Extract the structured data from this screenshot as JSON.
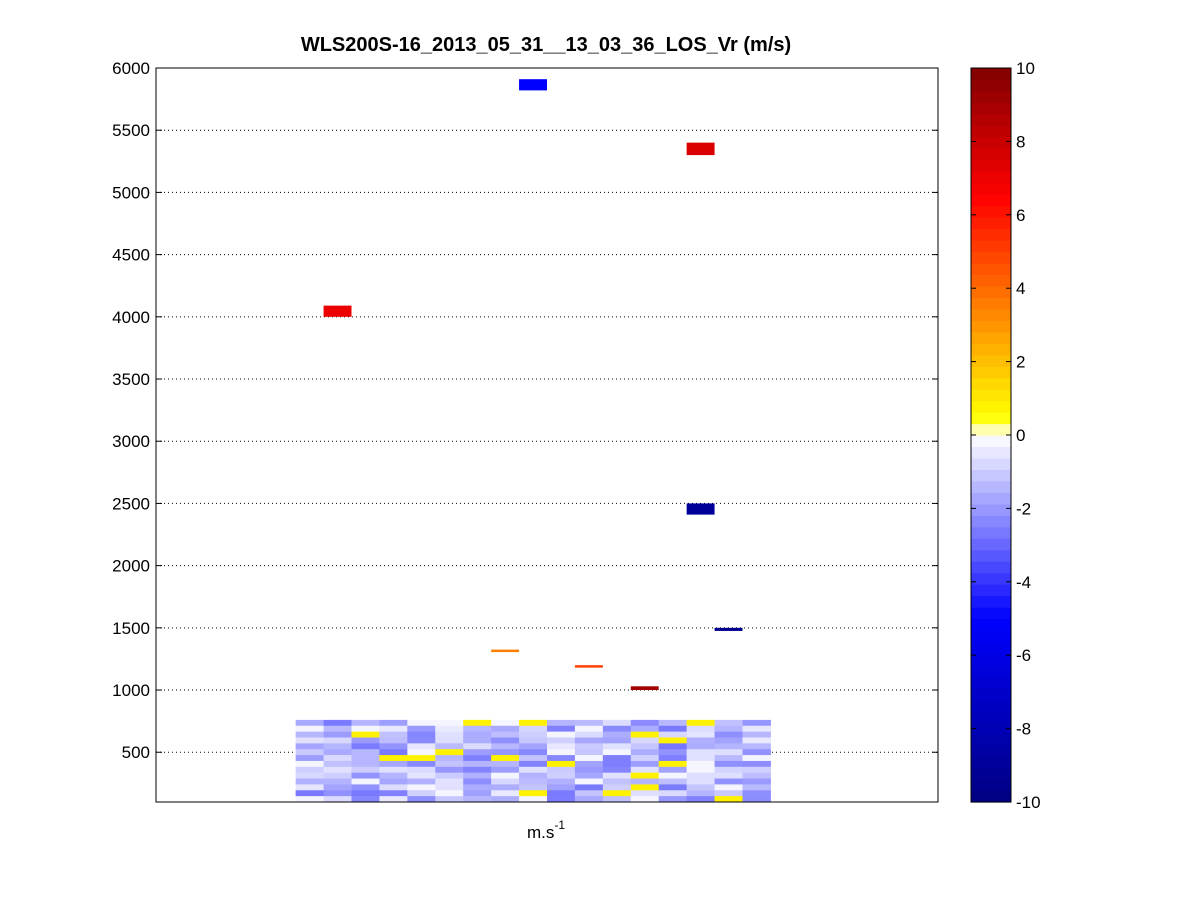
{
  "chart_data": {
    "type": "heatmap",
    "title": "WLS200S-16_2013_05_31__13_03_36_LOS_Vr (m/s)",
    "xlabel": "m.s",
    "xlabel_superscript": "-1",
    "ylabel": "",
    "ylim": [
      100,
      6000
    ],
    "yticks": [
      500,
      1000,
      1500,
      2000,
      2500,
      3000,
      3500,
      4000,
      4500,
      5000,
      5500,
      6000
    ],
    "grid": "horizontal dotted",
    "colorbar": {
      "range": [
        -10,
        10
      ],
      "ticks": [
        -10,
        -8,
        -6,
        -4,
        -2,
        0,
        2,
        4,
        6,
        8,
        10
      ],
      "levels": 64,
      "colors": {
        "min": "#000080",
        "mid_low": "#0000ff",
        "zero": "#ffffff",
        "low_pos": "#ffff00",
        "mid_pos": "#ff8000",
        "high_pos": "#ff0000",
        "max": "#800000"
      }
    },
    "x_columns": 28,
    "cells": [
      {
        "col": 13,
        "colspan": 1,
        "y_bottom": 5820,
        "y_top": 5910,
        "value": -5.0
      },
      {
        "col": 19,
        "colspan": 1,
        "y_bottom": 5300,
        "y_top": 5400,
        "value": 7.5
      },
      {
        "col": 6,
        "colspan": 1,
        "y_bottom": 4000,
        "y_top": 4090,
        "value": 7.0
      },
      {
        "col": 19,
        "colspan": 1,
        "y_bottom": 2410,
        "y_top": 2500,
        "value": -9.0
      },
      {
        "col": 20,
        "colspan": 1,
        "y_bottom": 1475,
        "y_top": 1500,
        "value": -9.5
      },
      {
        "col": 12,
        "colspan": 1,
        "y_bottom": 1305,
        "y_top": 1325,
        "value": 3.5
      },
      {
        "col": 15,
        "colspan": 1,
        "y_bottom": 1180,
        "y_top": 1200,
        "value": 5.0
      },
      {
        "col": 17,
        "colspan": 1,
        "y_bottom": 1000,
        "y_top": 1030,
        "value": 9.0
      }
    ],
    "low_region": {
      "col_start": 5,
      "col_end": 22,
      "y_bottom": 100,
      "y_top": 760,
      "rows": 14
    }
  }
}
